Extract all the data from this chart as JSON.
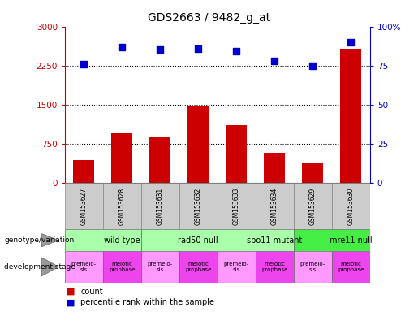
{
  "title": "GDS2663 / 9482_g_at",
  "samples": [
    "GSM153627",
    "GSM153628",
    "GSM153631",
    "GSM153632",
    "GSM153633",
    "GSM153634",
    "GSM153629",
    "GSM153630"
  ],
  "counts": [
    430,
    950,
    880,
    1480,
    1100,
    580,
    390,
    2580
  ],
  "percentile_ranks": [
    76,
    87,
    85,
    86,
    84,
    78,
    75,
    90
  ],
  "left_ylim": [
    0,
    3000
  ],
  "right_ylim": [
    0,
    100
  ],
  "left_yticks": [
    0,
    750,
    1500,
    2250,
    3000
  ],
  "right_yticks": [
    0,
    25,
    50,
    75,
    100
  ],
  "left_yticklabels": [
    "0",
    "750",
    "1500",
    "2250",
    "3000"
  ],
  "right_yticklabels": [
    "0",
    "25",
    "50",
    "75",
    "100%"
  ],
  "bar_color": "#cc0000",
  "dot_color": "#0000cc",
  "grid_color": "#000000",
  "genotype_groups": [
    {
      "label": "wild type",
      "start": 0,
      "end": 2,
      "color": "#aaffaa"
    },
    {
      "label": "rad50 null",
      "start": 2,
      "end": 4,
      "color": "#aaffaa"
    },
    {
      "label": "spo11 mutant",
      "start": 4,
      "end": 6,
      "color": "#aaffaa"
    },
    {
      "label": "mre11 null",
      "start": 6,
      "end": 8,
      "color": "#44ee44"
    }
  ],
  "dev_stage_groups": [
    {
      "label": "premeio-\nsis",
      "color": "#ff99ff"
    },
    {
      "label": "meiotic\nprophase",
      "color": "#ee44ee"
    },
    {
      "label": "premeio-\nsis",
      "color": "#ff99ff"
    },
    {
      "label": "meiotic\nprophase",
      "color": "#ee44ee"
    },
    {
      "label": "premeio-\nsis",
      "color": "#ff99ff"
    },
    {
      "label": "meiotic\nprophase",
      "color": "#ee44ee"
    },
    {
      "label": "premeio-\nsis",
      "color": "#ff99ff"
    },
    {
      "label": "meiotic\nprophase",
      "color": "#ee44ee"
    }
  ],
  "legend_count_color": "#cc0000",
  "legend_dot_color": "#0000cc",
  "tick_label_color_left": "#cc0000",
  "tick_label_color_right": "#0000cc",
  "title_color": "#000000",
  "title_fontsize": 10,
  "tick_fontsize": 7.5,
  "bar_width": 0.55,
  "sample_box_color": "#cccccc",
  "sample_box_edge": "#888888"
}
